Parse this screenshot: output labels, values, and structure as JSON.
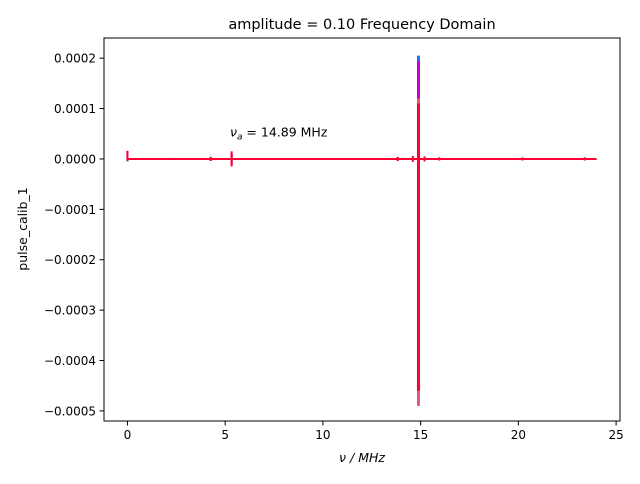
{
  "chart_data": {
    "type": "line",
    "title": "amplitude = 0.10 Frequency Domain",
    "xlabel": "ν / MHz",
    "ylabel": "pulse_calib_1",
    "xlim": [
      -1.2,
      25.2
    ],
    "ylim": [
      -0.00052,
      0.00024
    ],
    "xticks": [
      0,
      5,
      10,
      15,
      20,
      25
    ],
    "xtick_labels": [
      "0",
      "5",
      "10",
      "15",
      "20",
      "25"
    ],
    "yticks": [
      0.0002,
      0.0001,
      0.0,
      -0.0001,
      -0.0002,
      -0.0003,
      -0.0004,
      -0.0005
    ],
    "ytick_labels": [
      "0.0002",
      "0.0001",
      "0.0000",
      "−0.0001",
      "−0.0002",
      "−0.0003",
      "−0.0004",
      "−0.0005"
    ],
    "annotation": {
      "text_symbol": "ν",
      "text_subscript": "a",
      "text_value": " = 14.89 MHz",
      "x": 5.5,
      "y": 5.2e-05
    },
    "grid": false,
    "legend": "none",
    "baseline_range": [
      0,
      24
    ],
    "series": [
      {
        "color": "#1f77ff",
        "peak_x": 14.89,
        "peak_min": -0.00046,
        "peak_max": 0.000205,
        "spikes": [
          [
            0,
            -5e-06,
            1.2e-05
          ],
          [
            4.26,
            -4e-06,
            4e-06
          ],
          [
            5.33,
            -8e-06,
            8e-06
          ],
          [
            15.95,
            -3e-06,
            3e-06
          ],
          [
            20.21,
            -3e-06,
            3e-06
          ],
          [
            23.4,
            -3e-06,
            3e-06
          ]
        ]
      },
      {
        "color": "#cc00cc",
        "peak_x": 14.89,
        "peak_min": -0.000475,
        "peak_max": 0.000195,
        "spikes": [
          [
            0,
            -4e-06,
            1.5e-05
          ],
          [
            4.26,
            -4e-06,
            4e-06
          ],
          [
            5.33,
            -1.2e-05,
            1.2e-05
          ],
          [
            13.83,
            -3e-06,
            3e-06
          ],
          [
            15.95,
            -3e-06,
            3e-06
          ],
          [
            20.21,
            -3e-06,
            3e-06
          ],
          [
            23.4,
            -3e-06,
            3e-06
          ]
        ]
      },
      {
        "color": "#e8587a",
        "peak_x": 14.89,
        "peak_min": -0.00049,
        "peak_max": 0.00012,
        "spikes": [
          [
            0,
            -3e-06,
            1.6e-05
          ],
          [
            2.13,
            -2e-06,
            2e-06
          ],
          [
            4.26,
            -4e-06,
            4e-06
          ],
          [
            5.33,
            -1.2e-05,
            1.2e-05
          ],
          [
            13.83,
            -4e-06,
            4e-06
          ],
          [
            15.95,
            -3e-06,
            3e-06
          ],
          [
            20.21,
            -3e-06,
            3e-06
          ],
          [
            23.4,
            -3e-06,
            3e-06
          ]
        ]
      },
      {
        "color": "#ff0033",
        "peak_x": 14.89,
        "peak_min": -0.00046,
        "peak_max": 0.00011,
        "spikes": [
          [
            0,
            -3e-06,
            1.6e-05
          ],
          [
            2.13,
            -2e-06,
            2e-06
          ],
          [
            4.26,
            -4e-06,
            4e-06
          ],
          [
            5.33,
            -1.5e-05,
            1.5e-05
          ],
          [
            13.83,
            -4e-06,
            4e-06
          ],
          [
            14.6,
            -6e-06,
            6e-06
          ],
          [
            15.2,
            -5e-06,
            5e-06
          ],
          [
            15.95,
            -3e-06,
            3e-06
          ],
          [
            20.21,
            -3e-06,
            3e-06
          ],
          [
            23.4,
            -3e-06,
            3e-06
          ]
        ]
      }
    ]
  }
}
